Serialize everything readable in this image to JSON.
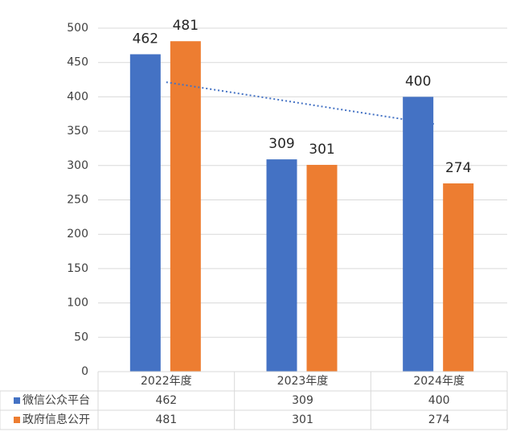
{
  "chart_data": {
    "type": "bar",
    "categories": [
      "2022年度",
      "2023年度",
      "2024年度"
    ],
    "series": [
      {
        "name": "微信公众平台",
        "color": "#4472c4",
        "values": [
          462,
          309,
          400
        ]
      },
      {
        "name": "政府信息公开",
        "color": "#ed7d31",
        "values": [
          481,
          301,
          274
        ]
      }
    ],
    "ylim": [
      0,
      500
    ],
    "yticks": [
      0,
      50,
      100,
      150,
      200,
      250,
      300,
      350,
      400,
      450,
      500
    ],
    "grid": true,
    "data_table": true,
    "trendline": {
      "series": 0,
      "type": "linear",
      "color": "#4472c4"
    }
  }
}
